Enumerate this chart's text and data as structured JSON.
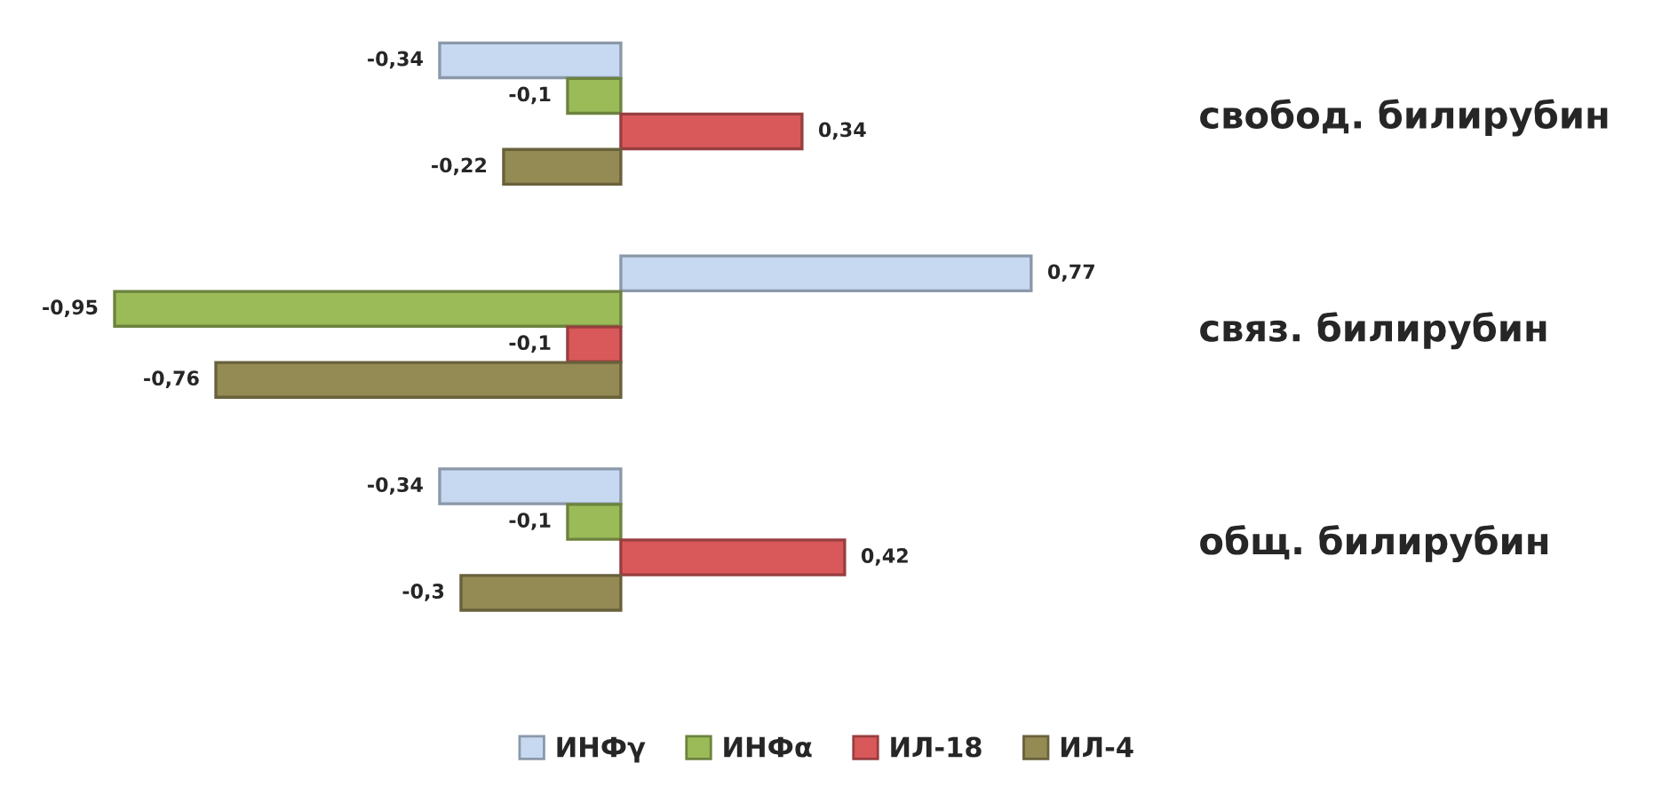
{
  "chart_data": {
    "type": "bar",
    "orientation": "horizontal",
    "tick_labels": "y",
    "grid": false,
    "legend": "bottom",
    "categories": [
      "свобод. билирубин",
      "связ. билирубин",
      "общ. билирубин"
    ],
    "series": [
      {
        "name": "ИНФγ",
        "color": "#c6d9f1",
        "values": [
          -0.34,
          0.77,
          -0.34
        ],
        "value_labels": [
          "-0,34",
          "0,77",
          "-0,34"
        ]
      },
      {
        "name": "ИНФα",
        "color": "#9bbb59",
        "values": [
          -0.1,
          -0.95,
          -0.1
        ],
        "value_labels": [
          "-0,1",
          "-0,95",
          "-0,1"
        ]
      },
      {
        "name": "ИЛ-18",
        "color": "#d9595a",
        "values": [
          0.34,
          -0.1,
          0.42
        ],
        "value_labels": [
          "0,34",
          "-0,1",
          "0,42"
        ]
      },
      {
        "name": "ИЛ-4",
        "color": "#948a54",
        "values": [
          -0.22,
          -0.76,
          -0.3
        ],
        "value_labels": [
          "-0,22",
          "-0,76",
          "-0,3"
        ]
      }
    ]
  }
}
